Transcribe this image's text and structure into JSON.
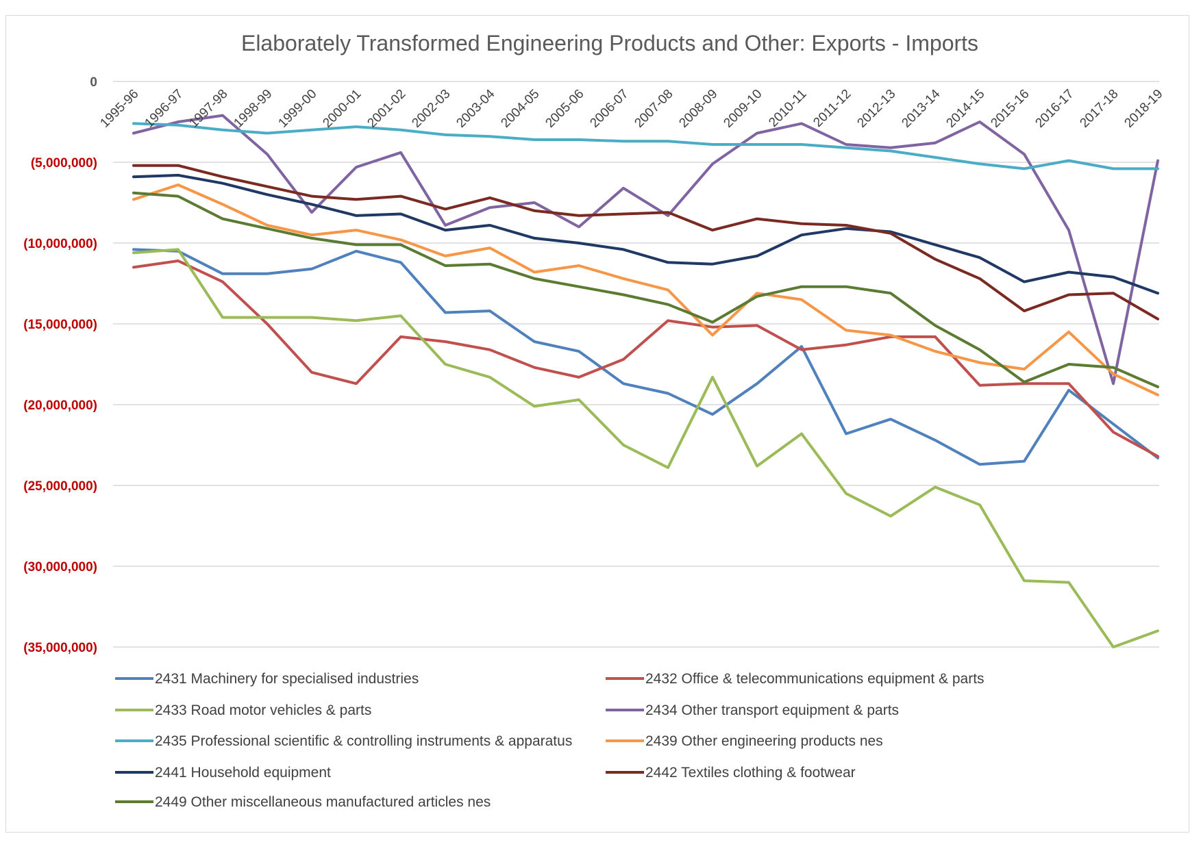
{
  "chart_data": {
    "type": "line",
    "title": "Elaborately Transformed Engineering Products and Other: Exports - Imports",
    "xlabel": "",
    "ylabel": "",
    "ylim": [
      -35000000,
      0
    ],
    "y_ticks": [
      0,
      -5000000,
      -10000000,
      -15000000,
      -20000000,
      -25000000,
      -30000000,
      -35000000
    ],
    "y_tick_labels": [
      "0",
      "(5,000,000)",
      "(10,000,000)",
      "(15,000,000)",
      "(20,000,000)",
      "(25,000,000)",
      "(30,000,000)",
      "(35,000,000)"
    ],
    "negative_label_color": "#c00000",
    "grid": true,
    "legend_position": "bottom",
    "categories": [
      "1995-96",
      "1996-97",
      "1997-98",
      "1998-99",
      "1999-00",
      "2000-01",
      "2001-02",
      "2002-03",
      "2003-04",
      "2004-05",
      "2005-06",
      "2006-07",
      "2007-08",
      "2008-09",
      "2009-10",
      "2010-11",
      "2011-12",
      "2012-13",
      "2013-14",
      "2014-15",
      "2015-16",
      "2016-17",
      "2017-18",
      "2018-19"
    ],
    "series": [
      {
        "name": "2431 Machinery for specialised industries",
        "color": "#4f81bd",
        "values": [
          -10400000,
          -10500000,
          -11900000,
          -11900000,
          -11600000,
          -10500000,
          -11200000,
          -14300000,
          -14200000,
          -16100000,
          -16700000,
          -18700000,
          -19300000,
          -20600000,
          -18700000,
          -16400000,
          -21800000,
          -20900000,
          -22200000,
          -23700000,
          -23500000,
          -19100000,
          -21200000,
          -23300000
        ]
      },
      {
        "name": "2432 Office & telecommunications equipment & parts",
        "color": "#c0504d",
        "values": [
          -11500000,
          -11100000,
          -12400000,
          -15000000,
          -18000000,
          -18700000,
          -15800000,
          -16100000,
          -16600000,
          -17700000,
          -18300000,
          -17200000,
          -14800000,
          -15200000,
          -15100000,
          -16600000,
          -16300000,
          -15800000,
          -15800000,
          -18800000,
          -18700000,
          -18700000,
          -21700000,
          -23200000
        ]
      },
      {
        "name": "2433 Road motor vehicles & parts",
        "color": "#9bbb59",
        "values": [
          -10600000,
          -10400000,
          -14600000,
          -14600000,
          -14600000,
          -14800000,
          -14500000,
          -17500000,
          -18300000,
          -20100000,
          -19700000,
          -22500000,
          -23900000,
          -18300000,
          -23800000,
          -21800000,
          -25500000,
          -26900000,
          -25100000,
          -26200000,
          -30900000,
          -31000000,
          -35000000,
          -34000000
        ]
      },
      {
        "name": "2434 Other transport equipment & parts",
        "color": "#8064a2",
        "values": [
          -3200000,
          -2500000,
          -2100000,
          -4500000,
          -8100000,
          -5300000,
          -4400000,
          -8900000,
          -7800000,
          -7500000,
          -9000000,
          -6600000,
          -8300000,
          -5100000,
          -3200000,
          -2600000,
          -3900000,
          -4100000,
          -3800000,
          -2500000,
          -4500000,
          -9200000,
          -18700000,
          -4900000
        ]
      },
      {
        "name": "2435 Professional scientific & controlling instruments & apparatus",
        "color": "#4bacc6",
        "values": [
          -2600000,
          -2700000,
          -3000000,
          -3200000,
          -3000000,
          -2800000,
          -3000000,
          -3300000,
          -3400000,
          -3600000,
          -3600000,
          -3700000,
          -3700000,
          -3900000,
          -3900000,
          -3900000,
          -4100000,
          -4300000,
          -4700000,
          -5100000,
          -5400000,
          -4900000,
          -5400000,
          -5400000
        ]
      },
      {
        "name": "2439 Other engineering products nes",
        "color": "#f79646",
        "values": [
          -7300000,
          -6400000,
          -7600000,
          -8900000,
          -9500000,
          -9200000,
          -9800000,
          -10800000,
          -10300000,
          -11800000,
          -11400000,
          -12200000,
          -12900000,
          -15700000,
          -13100000,
          -13500000,
          -15400000,
          -15700000,
          -16700000,
          -17400000,
          -17800000,
          -15500000,
          -18100000,
          -19400000
        ]
      },
      {
        "name": "2441 Household equipment",
        "color": "#1f3864",
        "values": [
          -5900000,
          -5800000,
          -6300000,
          -7000000,
          -7600000,
          -8300000,
          -8200000,
          -9200000,
          -8900000,
          -9700000,
          -10000000,
          -10400000,
          -11200000,
          -11300000,
          -10800000,
          -9500000,
          -9100000,
          -9300000,
          -10100000,
          -10900000,
          -12400000,
          -11800000,
          -12100000,
          -13100000
        ]
      },
      {
        "name": "2442 Textiles clothing & footwear",
        "color": "#7b2a22",
        "values": [
          -5200000,
          -5200000,
          -5900000,
          -6500000,
          -7100000,
          -7300000,
          -7100000,
          -7900000,
          -7200000,
          -8000000,
          -8300000,
          -8200000,
          -8100000,
          -9200000,
          -8500000,
          -8800000,
          -8900000,
          -9400000,
          -11000000,
          -12200000,
          -14200000,
          -13200000,
          -13100000,
          -14700000
        ]
      },
      {
        "name": "2449 Other miscellaneous manufactured articles nes",
        "color": "#5b7b32",
        "values": [
          -6900000,
          -7100000,
          -8500000,
          -9100000,
          -9700000,
          -10100000,
          -10100000,
          -11400000,
          -11300000,
          -12200000,
          -12700000,
          -13200000,
          -13800000,
          -14900000,
          -13300000,
          -12700000,
          -12700000,
          -13100000,
          -15100000,
          -16600000,
          -18600000,
          -17500000,
          -17700000,
          -18900000
        ]
      }
    ]
  }
}
